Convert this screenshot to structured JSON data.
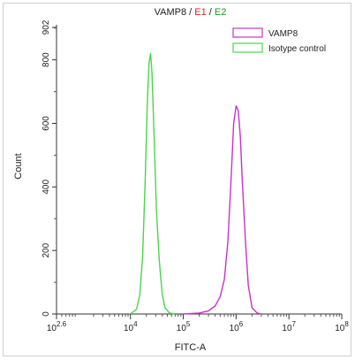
{
  "chart_data": {
    "type": "line",
    "title_parts": [
      {
        "text": "VAMP8",
        "color": "#222222"
      },
      {
        "text": " / ",
        "color": "#222222"
      },
      {
        "text": "E1",
        "color": "#d62020"
      },
      {
        "text": " / ",
        "color": "#222222"
      },
      {
        "text": "E2",
        "color": "#1a9a1a"
      }
    ],
    "xlabel": "FITC-A",
    "ylabel": "Count",
    "x_scale": "log",
    "xlim": [
      398,
      100000000
    ],
    "ylim": [
      0,
      902
    ],
    "x_ticks": [
      {
        "value": 398,
        "base": "10",
        "exp": "2.6"
      },
      {
        "value": 10000,
        "base": "10",
        "exp": "4"
      },
      {
        "value": 100000,
        "base": "10",
        "exp": "5"
      },
      {
        "value": 1000000,
        "base": "10",
        "exp": "6"
      },
      {
        "value": 10000000,
        "base": "10",
        "exp": "7"
      },
      {
        "value": 100000000,
        "base": "10",
        "exp": "8"
      }
    ],
    "y_ticks": [
      {
        "value": 0,
        "label": "0"
      },
      {
        "value": 200,
        "label": "200"
      },
      {
        "value": 400,
        "label": "400"
      },
      {
        "value": 600,
        "label": "600"
      },
      {
        "value": 800,
        "label": "800"
      },
      {
        "value": 902,
        "label": "902"
      }
    ],
    "legend_position": "top-right",
    "series": [
      {
        "name": "VAMP8",
        "color": "#c832c8",
        "points": [
          [
            100000,
            0
          ],
          [
            200000,
            3
          ],
          [
            300000,
            10
          ],
          [
            400000,
            25
          ],
          [
            500000,
            55
          ],
          [
            600000,
            110
          ],
          [
            700000,
            230
          ],
          [
            800000,
            420
          ],
          [
            900000,
            600
          ],
          [
            1000000,
            655
          ],
          [
            1100000,
            640
          ],
          [
            1200000,
            560
          ],
          [
            1300000,
            430
          ],
          [
            1500000,
            230
          ],
          [
            1700000,
            90
          ],
          [
            2000000,
            20
          ],
          [
            2500000,
            3
          ],
          [
            3000000,
            0
          ]
        ]
      },
      {
        "name": "Isotype control",
        "color": "#4cd44c",
        "points": [
          [
            10000,
            0
          ],
          [
            13000,
            15
          ],
          [
            15000,
            60
          ],
          [
            17000,
            180
          ],
          [
            19000,
            420
          ],
          [
            21000,
            680
          ],
          [
            22500,
            790
          ],
          [
            24000,
            820
          ],
          [
            25500,
            760
          ],
          [
            28000,
            560
          ],
          [
            31000,
            330
          ],
          [
            35000,
            170
          ],
          [
            40000,
            60
          ],
          [
            45000,
            20
          ],
          [
            55000,
            3
          ],
          [
            70000,
            0
          ]
        ]
      }
    ]
  }
}
